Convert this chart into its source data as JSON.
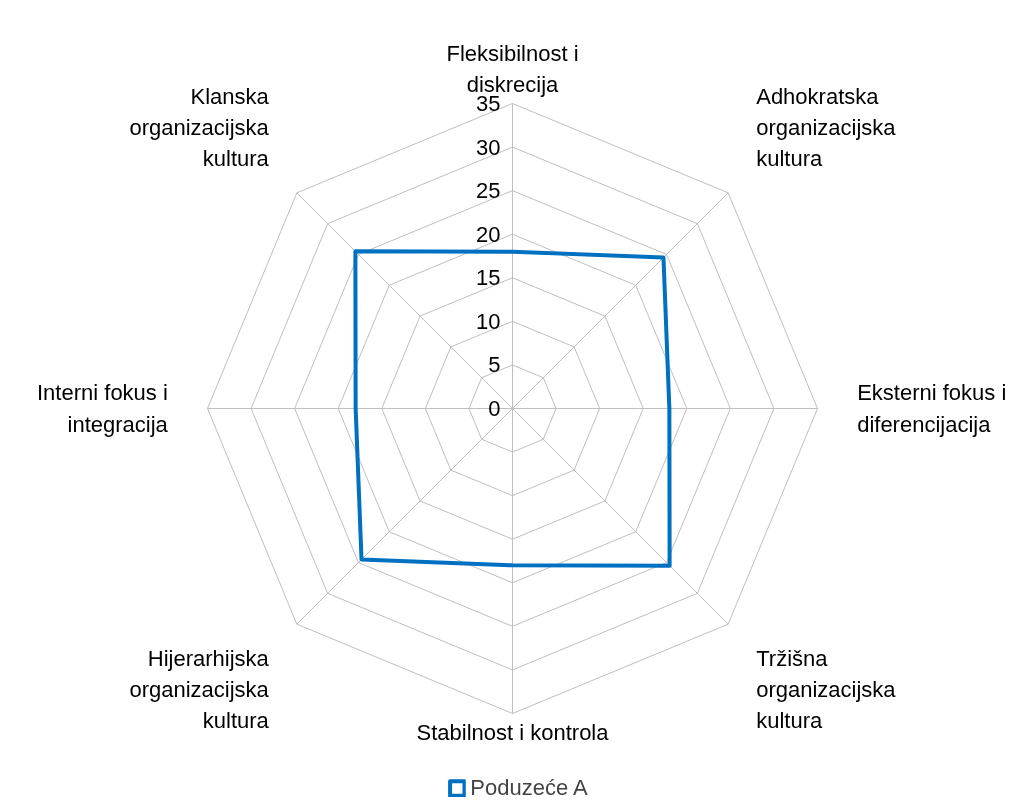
{
  "chart_data": {
    "type": "radar",
    "categories": [
      "Fleksibilnost i\ndiskrecija",
      "Adhokratska\norganizacijska\nkultura",
      "Eksterni fokus i\ndiferencijacija",
      "Tržišna\norganizacijska\nkultura",
      "Stabilnost i kontrola",
      "Hijerarhijska\norganizacijska\nkultura",
      "Interni fokus i\nintegracija",
      "Klanska\norganizacijska\nkultura"
    ],
    "series": [
      {
        "name": "Poduzeće A",
        "color": "#0070c0",
        "values": [
          18,
          24.5,
          18,
          25.5,
          18,
          24.5,
          18,
          25.5
        ]
      }
    ],
    "ylim": [
      0,
      35
    ],
    "yticks": [
      0,
      5,
      10,
      15,
      20,
      25,
      30,
      35
    ],
    "grid": true,
    "legend": "bottom",
    "line_style": "solid",
    "marker": "none"
  }
}
